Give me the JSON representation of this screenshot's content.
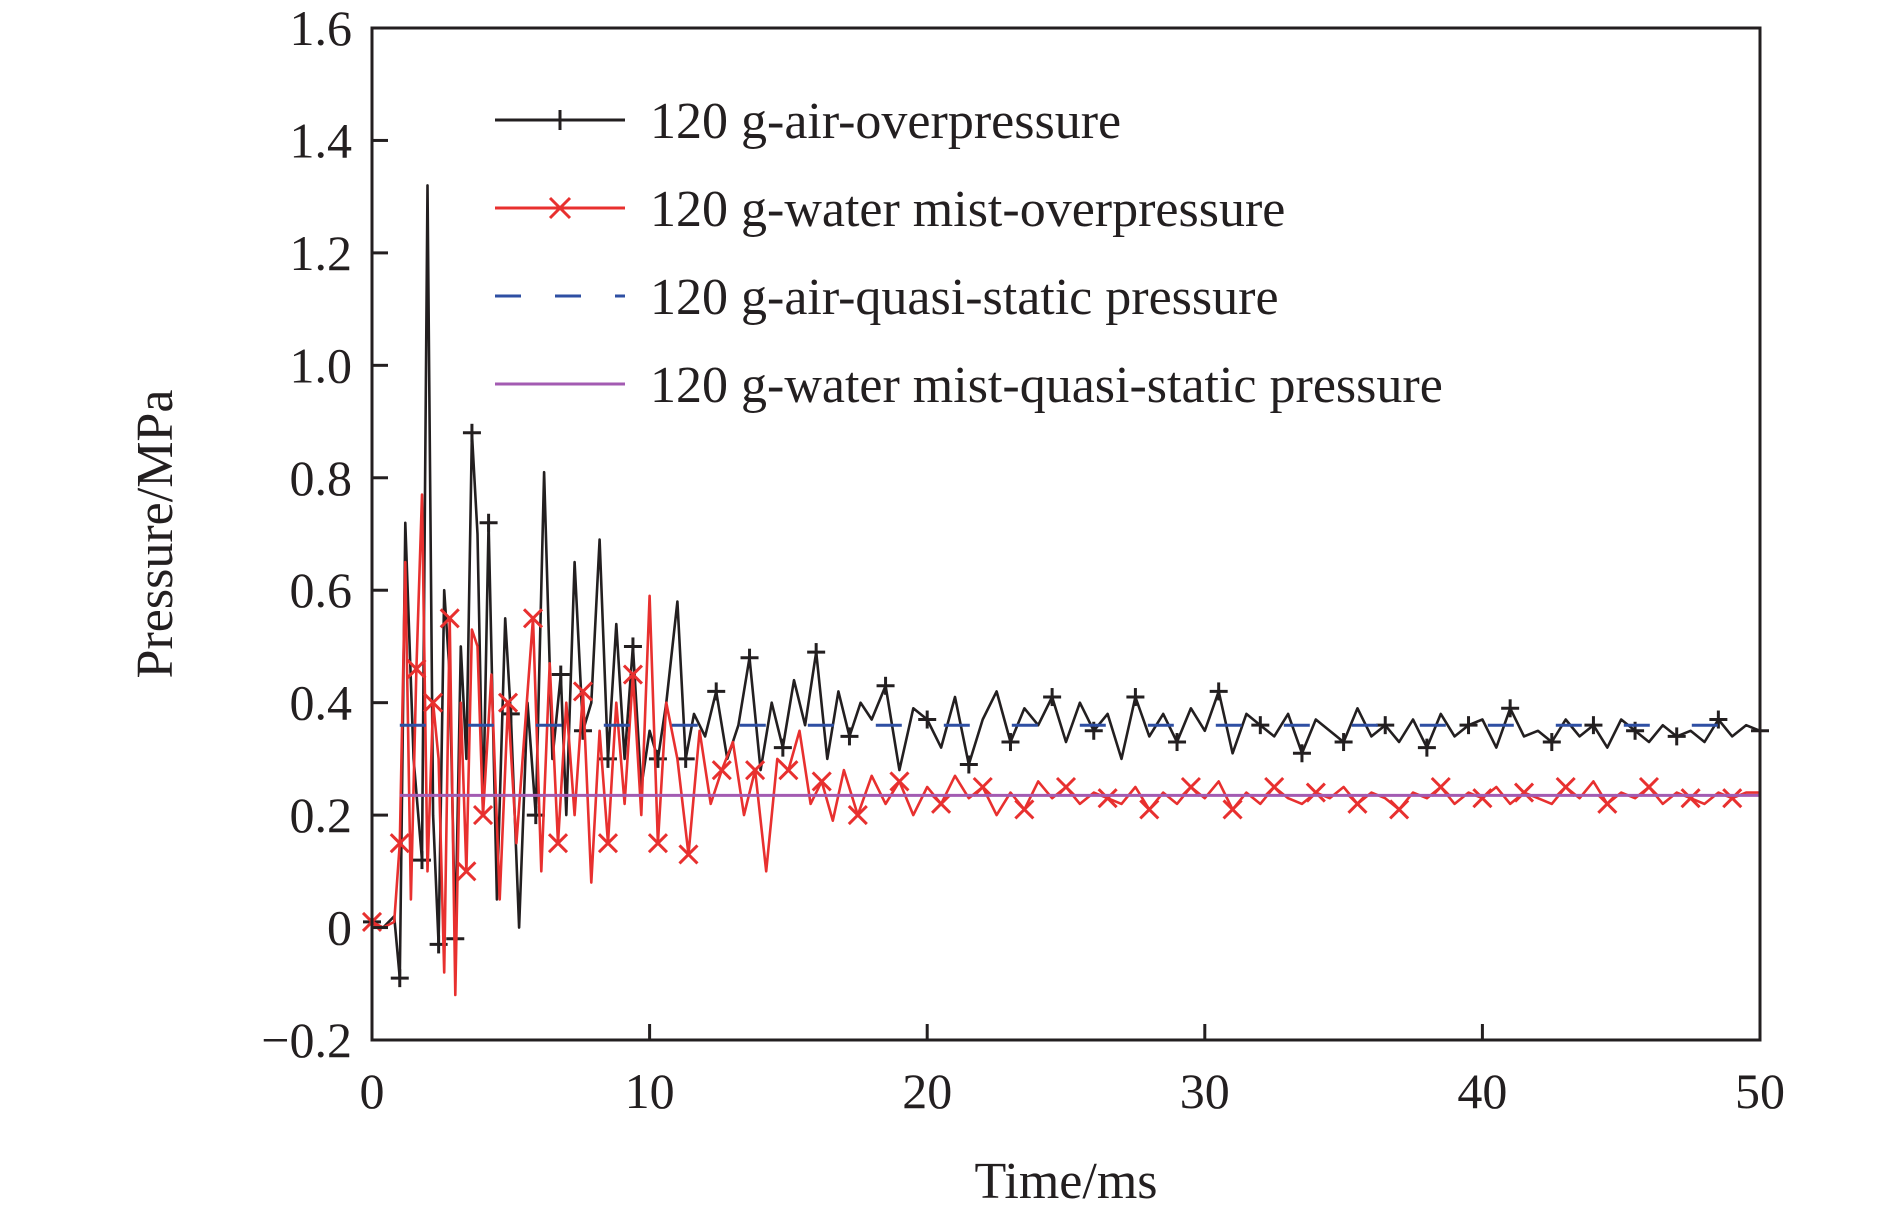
{
  "chart_data": {
    "type": "line",
    "title": "",
    "xlabel": "Time/ms",
    "ylabel": "Pressure/MPa",
    "xlim": [
      0,
      50
    ],
    "ylim": [
      -0.2,
      1.6
    ],
    "x_ticks": [
      0,
      10,
      20,
      30,
      40,
      50
    ],
    "x_tick_labels": [
      "0",
      "10",
      "20",
      "30",
      "40",
      "50"
    ],
    "y_ticks": [
      -0.2,
      0,
      0.2,
      0.4,
      0.6,
      0.8,
      1.0,
      1.2,
      1.4,
      1.6
    ],
    "y_tick_labels": [
      "−0.2",
      "0",
      "0.2",
      "0.4",
      "0.6",
      "0.8",
      "1.0",
      "1.2",
      "1.4",
      "1.6"
    ],
    "grid": false,
    "legend_position": "top-right",
    "series": [
      {
        "name": "120 g-air-overpressure",
        "color": "#231f20",
        "style": "solid",
        "marker": "plus",
        "x": [
          0,
          0.4,
          0.8,
          1.0,
          1.2,
          1.5,
          1.8,
          2.0,
          2.2,
          2.4,
          2.6,
          2.8,
          3.0,
          3.2,
          3.4,
          3.6,
          3.8,
          4.0,
          4.2,
          4.5,
          4.8,
          5.0,
          5.3,
          5.6,
          5.9,
          6.2,
          6.5,
          6.8,
          7.0,
          7.3,
          7.6,
          7.9,
          8.2,
          8.5,
          8.8,
          9.1,
          9.4,
          9.7,
          10.0,
          10.3,
          10.6,
          11.0,
          11.3,
          11.6,
          12.0,
          12.4,
          12.8,
          13.2,
          13.6,
          14.0,
          14.4,
          14.8,
          15.2,
          15.6,
          16.0,
          16.4,
          16.8,
          17.2,
          17.6,
          18.0,
          18.5,
          19.0,
          19.5,
          20.0,
          20.5,
          21.0,
          21.5,
          22.0,
          22.5,
          23.0,
          23.5,
          24.0,
          24.5,
          25.0,
          25.5,
          26.0,
          26.5,
          27.0,
          27.5,
          28.0,
          28.5,
          29.0,
          29.5,
          30.0,
          30.5,
          31.0,
          31.5,
          32.0,
          32.5,
          33.0,
          33.5,
          34.0,
          34.5,
          35.0,
          35.5,
          36.0,
          36.5,
          37.0,
          37.5,
          38.0,
          38.5,
          39.0,
          39.5,
          40.0,
          40.5,
          41.0,
          41.5,
          42.0,
          42.5,
          43.0,
          43.5,
          44.0,
          44.5,
          45.0,
          45.5,
          46.0,
          46.5,
          47.0,
          47.5,
          48.0,
          48.5,
          49.0,
          49.5,
          50.0
        ],
        "y": [
          0.01,
          0.0,
          0.02,
          -0.09,
          0.72,
          0.3,
          0.12,
          1.32,
          0.2,
          -0.03,
          0.6,
          0.45,
          -0.02,
          0.5,
          0.3,
          0.88,
          0.7,
          0.2,
          0.72,
          0.05,
          0.55,
          0.38,
          0.0,
          0.4,
          0.2,
          0.81,
          0.3,
          0.45,
          0.2,
          0.65,
          0.35,
          0.4,
          0.69,
          0.3,
          0.54,
          0.3,
          0.5,
          0.25,
          0.35,
          0.3,
          0.4,
          0.58,
          0.3,
          0.38,
          0.34,
          0.42,
          0.3,
          0.36,
          0.48,
          0.28,
          0.4,
          0.32,
          0.44,
          0.36,
          0.49,
          0.3,
          0.42,
          0.34,
          0.4,
          0.37,
          0.43,
          0.28,
          0.39,
          0.37,
          0.32,
          0.41,
          0.29,
          0.37,
          0.42,
          0.33,
          0.39,
          0.36,
          0.41,
          0.33,
          0.4,
          0.35,
          0.38,
          0.3,
          0.41,
          0.34,
          0.38,
          0.33,
          0.39,
          0.35,
          0.42,
          0.31,
          0.38,
          0.36,
          0.34,
          0.38,
          0.31,
          0.37,
          0.35,
          0.33,
          0.39,
          0.34,
          0.36,
          0.33,
          0.37,
          0.32,
          0.38,
          0.34,
          0.36,
          0.37,
          0.32,
          0.39,
          0.34,
          0.35,
          0.33,
          0.37,
          0.34,
          0.36,
          0.32,
          0.37,
          0.35,
          0.33,
          0.36,
          0.34,
          0.35,
          0.33,
          0.37,
          0.34,
          0.36,
          0.35
        ]
      },
      {
        "name": "120 g-water mist-overpressure",
        "color": "#e8302f",
        "style": "solid",
        "marker": "x",
        "x": [
          0,
          0.4,
          0.8,
          1.0,
          1.2,
          1.4,
          1.6,
          1.8,
          2.0,
          2.2,
          2.4,
          2.6,
          2.8,
          3.0,
          3.2,
          3.4,
          3.6,
          3.8,
          4.0,
          4.3,
          4.6,
          4.9,
          5.2,
          5.5,
          5.8,
          6.1,
          6.4,
          6.7,
          7.0,
          7.3,
          7.6,
          7.9,
          8.2,
          8.5,
          8.8,
          9.1,
          9.4,
          9.7,
          10.0,
          10.3,
          10.6,
          11.0,
          11.4,
          11.8,
          12.2,
          12.6,
          13.0,
          13.4,
          13.8,
          14.2,
          14.6,
          15.0,
          15.4,
          15.8,
          16.2,
          16.6,
          17.0,
          17.5,
          18.0,
          18.5,
          19.0,
          19.5,
          20.0,
          20.5,
          21.0,
          21.5,
          22.0,
          22.5,
          23.0,
          23.5,
          24.0,
          24.5,
          25.0,
          25.5,
          26.0,
          26.5,
          27.0,
          27.5,
          28.0,
          28.5,
          29.0,
          29.5,
          30.0,
          30.5,
          31.0,
          31.5,
          32.0,
          32.5,
          33.0,
          33.5,
          34.0,
          34.5,
          35.0,
          35.5,
          36.0,
          36.5,
          37.0,
          37.5,
          38.0,
          38.5,
          39.0,
          39.5,
          40.0,
          40.5,
          41.0,
          41.5,
          42.0,
          42.5,
          43.0,
          43.5,
          44.0,
          44.5,
          45.0,
          45.5,
          46.0,
          46.5,
          47.0,
          47.5,
          48.0,
          48.5,
          49.0,
          49.5,
          50.0
        ],
        "y": [
          0.01,
          0.0,
          0.01,
          0.15,
          0.65,
          0.05,
          0.46,
          0.77,
          0.1,
          0.4,
          0.3,
          -0.08,
          0.55,
          -0.12,
          0.4,
          0.1,
          0.53,
          0.5,
          0.2,
          0.45,
          0.05,
          0.4,
          0.15,
          0.35,
          0.55,
          0.1,
          0.47,
          0.15,
          0.4,
          0.2,
          0.42,
          0.08,
          0.35,
          0.15,
          0.4,
          0.22,
          0.45,
          0.2,
          0.59,
          0.15,
          0.4,
          0.3,
          0.13,
          0.35,
          0.22,
          0.28,
          0.33,
          0.2,
          0.28,
          0.1,
          0.3,
          0.28,
          0.35,
          0.22,
          0.26,
          0.19,
          0.28,
          0.2,
          0.27,
          0.22,
          0.26,
          0.2,
          0.25,
          0.22,
          0.27,
          0.23,
          0.25,
          0.2,
          0.24,
          0.21,
          0.26,
          0.23,
          0.25,
          0.22,
          0.24,
          0.23,
          0.22,
          0.25,
          0.21,
          0.24,
          0.22,
          0.25,
          0.23,
          0.26,
          0.21,
          0.24,
          0.22,
          0.25,
          0.23,
          0.22,
          0.24,
          0.23,
          0.25,
          0.22,
          0.24,
          0.23,
          0.21,
          0.24,
          0.23,
          0.25,
          0.22,
          0.24,
          0.23,
          0.25,
          0.22,
          0.24,
          0.23,
          0.22,
          0.25,
          0.23,
          0.26,
          0.22,
          0.24,
          0.23,
          0.25,
          0.22,
          0.24,
          0.23,
          0.22,
          0.24,
          0.23,
          0.24,
          0.24
        ]
      },
      {
        "name": "120 g-air-quasi-static pressure",
        "color": "#2e4fa3",
        "style": "dashed",
        "marker": "none",
        "x": [
          1,
          50
        ],
        "y": [
          0.36,
          0.36
        ]
      },
      {
        "name": "120 g-water mist-quasi-static pressure",
        "color": "#a35bb2",
        "style": "solid",
        "marker": "none",
        "x": [
          1,
          50
        ],
        "y": [
          0.235,
          0.235
        ]
      }
    ]
  }
}
